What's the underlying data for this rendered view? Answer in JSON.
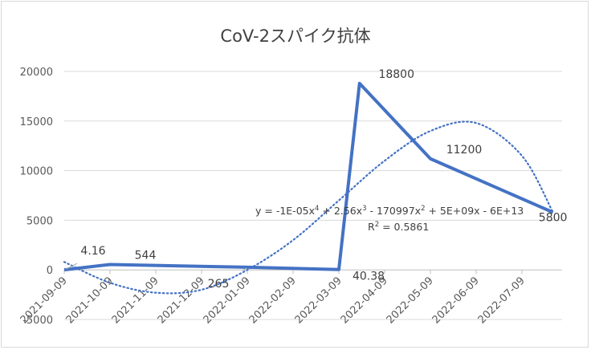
{
  "chart_data": {
    "type": "line",
    "title": "CoV-2スパイク抗体",
    "xlabel": "",
    "ylabel": "",
    "ylim": [
      -5000,
      20000
    ],
    "y_ticks": [
      "-5000",
      "0",
      "5000",
      "10000",
      "15000",
      "20000"
    ],
    "x_ticks": [
      "2021-09-09",
      "2021-10-09",
      "2021-11-09",
      "2021-12-09",
      "2022-01-09",
      "2022-02-09",
      "2022-03-09",
      "2022-04-09",
      "2022-05-09",
      "2022-06-09",
      "2022-07-09"
    ],
    "grid": true,
    "legend": "none",
    "series": [
      {
        "points": [
          {
            "x": "2021-09-09",
            "y": 4.16
          },
          {
            "x": "2021-10-09",
            "y": 544
          },
          {
            "x": "2022-01-09",
            "y": 265
          },
          {
            "x": "2022-03-09",
            "y": 40.38
          },
          {
            "x": "2022-03-23",
            "y": 18800
          },
          {
            "x": "2022-05-09",
            "y": 11200
          },
          {
            "x": "2022-07-30",
            "y": 5800
          }
        ],
        "labels": [
          "4.16",
          "544",
          "265",
          "40.38",
          "18800",
          "11200",
          "5800"
        ],
        "color": "#4472c4"
      }
    ],
    "trendline": {
      "type": "polynomial",
      "order": 4,
      "color": "#4472c4",
      "equation_parts": [
        "y = -1E-05x",
        "4",
        " + 2.56x",
        "3",
        " - 170997x",
        "2",
        " + 5E+09x - 6E+13"
      ],
      "r2_parts": [
        "R",
        "2",
        " = 0.5861"
      ],
      "points": [
        {
          "x": "2021-09-09",
          "y": 800
        },
        {
          "x": "2021-10-09",
          "y": -1300
        },
        {
          "x": "2021-11-09",
          "y": -2300
        },
        {
          "x": "2021-12-09",
          "y": -2000
        },
        {
          "x": "2022-01-09",
          "y": 0
        },
        {
          "x": "2022-02-09",
          "y": 3000
        },
        {
          "x": "2022-03-09",
          "y": 7000
        },
        {
          "x": "2022-04-09",
          "y": 11000
        },
        {
          "x": "2022-05-09",
          "y": 14000
        },
        {
          "x": "2022-06-09",
          "y": 14800
        },
        {
          "x": "2022-07-09",
          "y": 11500
        },
        {
          "x": "2022-07-30",
          "y": 5800
        }
      ]
    }
  }
}
